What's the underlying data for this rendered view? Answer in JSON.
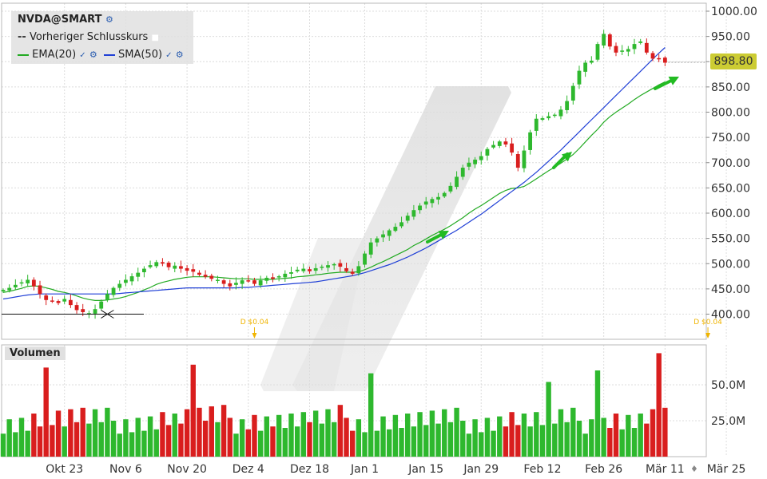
{
  "legend": {
    "title": "NVDA@SMART",
    "prev_close": "Vorheriger Schlusskurs",
    "ema": "EMA(20)",
    "sma": "SMA(50)"
  },
  "volume_label": "Volumen",
  "last_price_label": "898.80",
  "dividends": [
    {
      "text": "D $0.04",
      "date_index": 41
    },
    {
      "text": "D $0.04",
      "date_index": 115
    }
  ],
  "colors": {
    "up": "#2eb82e",
    "down": "#d91e1e",
    "ema": "#22aa22",
    "sma": "#1f3fd6",
    "price_tag": "#cccc33",
    "arrow": "#22bb22",
    "dividend": "#f0b400"
  },
  "chart_data": [
    {
      "type": "candlestick",
      "title": "NVDA@SMART",
      "y_ticks": [
        "1000.00",
        "950.00",
        "900.00",
        "850.00",
        "800.00",
        "750.00",
        "700.00",
        "650.00",
        "600.00",
        "550.00",
        "500.00",
        "450.00",
        "400.00"
      ],
      "ylim": [
        370,
        1020
      ],
      "x_ticks": [
        {
          "label": "Okt 23",
          "index": 10
        },
        {
          "label": "Nov 6",
          "index": 20
        },
        {
          "label": "Nov 20",
          "index": 30
        },
        {
          "label": "Dez 4",
          "index": 40
        },
        {
          "label": "Dez 18",
          "index": 50
        },
        {
          "label": "Jan 1",
          "index": 59
        },
        {
          "label": "Jan 15",
          "index": 69
        },
        {
          "label": "Jan 29",
          "index": 78
        },
        {
          "label": "Feb 12",
          "index": 88
        },
        {
          "label": "Feb 26",
          "index": 98
        },
        {
          "label": "Mär 11",
          "index": 108
        },
        {
          "label": "Mär 25",
          "index": 118
        }
      ],
      "closes": [
        448,
        452,
        458,
        463,
        468,
        455,
        440,
        428,
        425,
        422,
        430,
        418,
        408,
        404,
        402,
        410,
        425,
        440,
        452,
        460,
        468,
        475,
        482,
        490,
        497,
        503,
        500,
        493,
        496,
        490,
        486,
        484,
        478,
        474,
        470,
        468,
        460,
        455,
        462,
        467,
        465,
        460,
        467,
        472,
        470,
        475,
        480,
        483,
        488,
        490,
        485,
        491,
        494,
        497,
        499,
        494,
        485,
        480,
        495,
        520,
        542,
        550,
        558,
        566,
        573,
        582,
        595,
        606,
        615,
        623,
        628,
        632,
        640,
        654,
        672,
        690,
        700,
        706,
        713,
        727,
        735,
        742,
        736,
        720,
        690,
        724,
        760,
        787,
        788,
        792,
        795,
        805,
        822,
        852,
        882,
        898,
        902,
        935,
        955,
        930,
        918,
        922,
        925,
        935,
        940,
        918,
        906,
        905,
        898
      ],
      "series": [
        {
          "name": "EMA(20)",
          "values": [
            443,
            445,
            448,
            451,
            455,
            456,
            455,
            452,
            449,
            445,
            443,
            440,
            436,
            432,
            429,
            427,
            427,
            428,
            430,
            432,
            435,
            439,
            443,
            448,
            453,
            459,
            463,
            466,
            469,
            471,
            473,
            474,
            474,
            474,
            474,
            473,
            472,
            471,
            470,
            470,
            470,
            469,
            469,
            469,
            469,
            470,
            471,
            472,
            474,
            475,
            476,
            478,
            479,
            481,
            482,
            483,
            483,
            483,
            484,
            488,
            493,
            499,
            504,
            510,
            516,
            522,
            528,
            536,
            542,
            549,
            556,
            562,
            568,
            575,
            583,
            591,
            600,
            608,
            615,
            623,
            631,
            639,
            645,
            649,
            650,
            653,
            660,
            668,
            676,
            684,
            691,
            699,
            707,
            716,
            728,
            741,
            754,
            766,
            780,
            791,
            800,
            808,
            816,
            825,
            833,
            840,
            847,
            854,
            860
          ]
        },
        {
          "name": "SMA(50)",
          "values": [
            430,
            432,
            434,
            436,
            438,
            439,
            440,
            440,
            440,
            440,
            440,
            440,
            440,
            440,
            440,
            440,
            440,
            440,
            440,
            441,
            442,
            443,
            444,
            445,
            446,
            447,
            448,
            449,
            450,
            451,
            452,
            452,
            452,
            452,
            452,
            452,
            452,
            452,
            452,
            453,
            453,
            454,
            455,
            456,
            457,
            458,
            459,
            460,
            461,
            462,
            463,
            464,
            466,
            468,
            470,
            472,
            474,
            476,
            479,
            482,
            486,
            490,
            494,
            498,
            503,
            508,
            513,
            519,
            525,
            531,
            538,
            545,
            552,
            559,
            566,
            574,
            582,
            590,
            598,
            607,
            616,
            625,
            634,
            643,
            652,
            661,
            671,
            681,
            692,
            703,
            714,
            725,
            737,
            749,
            761,
            773,
            785,
            797,
            809,
            821,
            833,
            845,
            857,
            869,
            881,
            893,
            905,
            917,
            928
          ]
        }
      ],
      "prev_close_line": 400
    },
    {
      "type": "bar",
      "title": "Volumen",
      "y_ticks": [
        "50.0M",
        "25.0M"
      ],
      "ylim": [
        0,
        78
      ]
    }
  ]
}
